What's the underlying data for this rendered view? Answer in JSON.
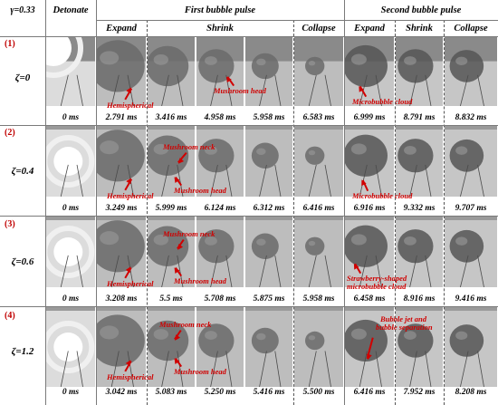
{
  "header": {
    "gamma": "γ=0.33",
    "detonate": "Detonate",
    "first_pulse": "First bubble pulse",
    "second_pulse": "Second bubble pulse",
    "expand": "Expand",
    "shrink": "Shrink",
    "collapse": "Collapse"
  },
  "rows": [
    {
      "label": "(1)",
      "zeta": "ζ=0",
      "times": [
        "0 ms",
        "2.791 ms",
        "3.416 ms",
        "4.958 ms",
        "5.958 ms",
        "6.583 ms",
        "6.999 ms",
        "8.791 ms",
        "8.832 ms"
      ],
      "annotations": [
        "Hemispherical",
        "Mushroom head",
        "Microbubble cloud"
      ]
    },
    {
      "label": "(2)",
      "zeta": "ζ=0.4",
      "times": [
        "0 ms",
        "3.249 ms",
        "5.999 ms",
        "6.124 ms",
        "6.312 ms",
        "6.416 ms",
        "6.916 ms",
        "9.332 ms",
        "9.707 ms"
      ],
      "annotations": [
        "Mushroom neck",
        "Hemispherical",
        "Mushroom head",
        "Microbubble cloud"
      ]
    },
    {
      "label": "(3)",
      "zeta": "ζ=0.6",
      "times": [
        "0 ms",
        "3.208 ms",
        "5.5 ms",
        "5.708 ms",
        "5.875 ms",
        "5.958 ms",
        "6.458 ms",
        "8.916 ms",
        "9.416 ms"
      ],
      "annotations": [
        "Mushroom neck",
        "Hemispherical",
        "Mushroom head",
        "Strawberry-shaped",
        "microbubble cloud"
      ]
    },
    {
      "label": "(4)",
      "zeta": "ζ=1.2",
      "times": [
        "0 ms",
        "3.042 ms",
        "5.083 ms",
        "5.250 ms",
        "5.416 ms",
        "5.500 ms",
        "6.416 ms",
        "7.952 ms",
        "8.208 ms"
      ],
      "annotations": [
        "Mushroom neck",
        "Bubble jet and",
        "bubble separation",
        "Hemispherical",
        "Mushroom head"
      ]
    }
  ],
  "colors": {
    "annotation": "#d00000",
    "row_label": "#c00000",
    "divider": "#7a7a7a"
  }
}
